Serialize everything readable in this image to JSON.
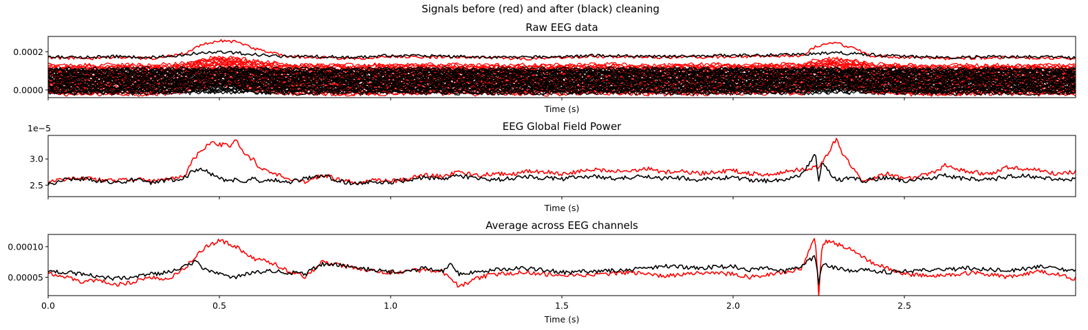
{
  "figure": {
    "suptitle": "Signals before (red) and after (black) cleaning"
  },
  "colors": {
    "before": "#ff0000",
    "after": "#000000"
  },
  "chart_data": [
    {
      "type": "line",
      "title": "Raw EEG data",
      "xlabel": "Time (s)",
      "ylabel": "",
      "xlim": [
        0,
        3.0
      ],
      "ylim": [
        -4e-05,
        0.00028
      ],
      "yticks": [
        0.0,
        0.0002
      ],
      "ytick_labels": [
        "0.0000",
        "0.0002"
      ],
      "xtick_labels_visible": false,
      "grid": false,
      "n_channels_per_series": 32,
      "series": [
        {
          "name": "before",
          "color": "#ff0000",
          "x": [
            0.0,
            0.1,
            0.2,
            0.3,
            0.4,
            0.45,
            0.5,
            0.55,
            0.6,
            0.7,
            0.8,
            0.9,
            1.0,
            1.2,
            1.4,
            1.6,
            1.8,
            2.0,
            2.2,
            2.24,
            2.3,
            2.35,
            2.4,
            2.5,
            2.6,
            2.8,
            3.0
          ],
          "top_channel": [
            0.00017,
            0.000165,
            0.00017,
            0.000165,
            0.00019,
            0.000235,
            0.00026,
            0.00025,
            0.000215,
            0.000175,
            0.00017,
            0.000165,
            0.000175,
            0.00017,
            0.000165,
            0.000175,
            0.00017,
            0.000175,
            0.00018,
            0.000225,
            0.000245,
            0.00022,
            0.00018,
            0.00017,
            0.000165,
            0.00017,
            0.000165
          ],
          "band_range": [
            -2e-05,
            0.00013
          ]
        },
        {
          "name": "after",
          "color": "#000000",
          "x": [
            0.0,
            0.1,
            0.2,
            0.3,
            0.4,
            0.45,
            0.5,
            0.55,
            0.6,
            0.7,
            0.8,
            0.9,
            1.0,
            1.2,
            1.4,
            1.6,
            1.8,
            2.0,
            2.2,
            2.24,
            2.3,
            2.35,
            2.4,
            2.5,
            2.6,
            2.8,
            3.0
          ],
          "top_channel": [
            0.000175,
            0.00017,
            0.000175,
            0.00017,
            0.000185,
            0.000195,
            0.0002,
            0.000195,
            0.000185,
            0.000175,
            0.000175,
            0.00017,
            0.00018,
            0.000175,
            0.00017,
            0.00018,
            0.000175,
            0.00018,
            0.000185,
            0.00019,
            0.000195,
            0.00019,
            0.000185,
            0.000175,
            0.00017,
            0.000175,
            0.00017
          ],
          "band_range": [
            -1.5e-05,
            0.00011
          ]
        }
      ]
    },
    {
      "type": "line",
      "title": "EEG Global Field Power",
      "xlabel": "Time (s)",
      "ylabel": "",
      "offset_text": "1e−5",
      "xlim": [
        0,
        3.0
      ],
      "ylim": [
        2.28,
        3.45
      ],
      "yticks": [
        2.5,
        3.0
      ],
      "ytick_labels": [
        "2.5",
        "3.0"
      ],
      "xtick_labels_visible": false,
      "grid": false,
      "series": [
        {
          "name": "before",
          "color": "#ff0000",
          "x": [
            0.0,
            0.05,
            0.1,
            0.15,
            0.2,
            0.25,
            0.3,
            0.35,
            0.4,
            0.42,
            0.45,
            0.48,
            0.5,
            0.53,
            0.55,
            0.58,
            0.6,
            0.62,
            0.65,
            0.7,
            0.75,
            0.8,
            0.85,
            0.9,
            0.95,
            1.0,
            1.05,
            1.1,
            1.15,
            1.2,
            1.25,
            1.3,
            1.35,
            1.4,
            1.45,
            1.5,
            1.55,
            1.6,
            1.65,
            1.7,
            1.75,
            1.8,
            1.85,
            1.9,
            1.95,
            2.0,
            2.05,
            2.1,
            2.15,
            2.2,
            2.25,
            2.28,
            2.3,
            2.32,
            2.35,
            2.38,
            2.4,
            2.45,
            2.5,
            2.55,
            2.6,
            2.62,
            2.65,
            2.7,
            2.75,
            2.8,
            2.85,
            2.9,
            2.95,
            3.0
          ],
          "values": [
            2.55,
            2.62,
            2.65,
            2.6,
            2.58,
            2.62,
            2.57,
            2.6,
            2.68,
            2.95,
            3.2,
            3.3,
            3.28,
            3.25,
            3.35,
            3.05,
            2.98,
            2.8,
            2.75,
            2.62,
            2.55,
            2.7,
            2.6,
            2.55,
            2.6,
            2.57,
            2.62,
            2.7,
            2.66,
            2.75,
            2.68,
            2.72,
            2.7,
            2.78,
            2.75,
            2.72,
            2.76,
            2.8,
            2.75,
            2.78,
            2.82,
            2.74,
            2.76,
            2.72,
            2.75,
            2.78,
            2.72,
            2.7,
            2.76,
            2.8,
            2.85,
            3.15,
            3.38,
            3.1,
            2.82,
            2.55,
            2.6,
            2.72,
            2.62,
            2.68,
            2.78,
            2.9,
            2.8,
            2.75,
            2.7,
            2.85,
            2.8,
            2.78,
            2.7,
            2.76
          ]
        },
        {
          "name": "after",
          "color": "#000000",
          "x": [
            0.0,
            0.05,
            0.1,
            0.15,
            0.2,
            0.25,
            0.3,
            0.35,
            0.4,
            0.42,
            0.45,
            0.48,
            0.5,
            0.53,
            0.55,
            0.58,
            0.6,
            0.62,
            0.65,
            0.7,
            0.75,
            0.8,
            0.85,
            0.9,
            0.95,
            1.0,
            1.05,
            1.1,
            1.15,
            1.2,
            1.25,
            1.3,
            1.35,
            1.4,
            1.45,
            1.5,
            1.55,
            1.6,
            1.65,
            1.7,
            1.75,
            1.8,
            1.85,
            1.9,
            1.95,
            2.0,
            2.05,
            2.1,
            2.15,
            2.2,
            2.24,
            2.25,
            2.26,
            2.28,
            2.3,
            2.32,
            2.35,
            2.38,
            2.4,
            2.45,
            2.5,
            2.55,
            2.6,
            2.62,
            2.65,
            2.7,
            2.75,
            2.8,
            2.85,
            2.9,
            2.95,
            3.0
          ],
          "values": [
            2.52,
            2.6,
            2.62,
            2.58,
            2.55,
            2.6,
            2.55,
            2.58,
            2.65,
            2.75,
            2.82,
            2.7,
            2.62,
            2.58,
            2.6,
            2.58,
            2.62,
            2.58,
            2.6,
            2.55,
            2.62,
            2.68,
            2.58,
            2.52,
            2.58,
            2.55,
            2.6,
            2.65,
            2.62,
            2.68,
            2.62,
            2.6,
            2.63,
            2.66,
            2.64,
            2.62,
            2.65,
            2.67,
            2.63,
            2.65,
            2.68,
            2.62,
            2.64,
            2.6,
            2.63,
            2.65,
            2.6,
            2.58,
            2.62,
            2.7,
            3.1,
            2.6,
            2.95,
            2.75,
            2.62,
            2.6,
            2.65,
            2.58,
            2.6,
            2.65,
            2.58,
            2.62,
            2.66,
            2.7,
            2.64,
            2.62,
            2.6,
            2.66,
            2.68,
            2.64,
            2.6,
            2.62
          ]
        }
      ]
    },
    {
      "type": "line",
      "title": "Average across EEG channels",
      "xlabel": "Time (s)",
      "ylabel": "",
      "xlim": [
        0,
        3.0
      ],
      "ylim": [
        2e-05,
        0.00012
      ],
      "yticks": [
        5e-05,
        0.0001
      ],
      "ytick_labels": [
        "0.00005",
        "0.00010"
      ],
      "xticks": [
        0.0,
        0.5,
        1.0,
        1.5,
        2.0,
        2.5
      ],
      "xtick_labels": [
        "0.0",
        "0.5",
        "1.0",
        "1.5",
        "2.0",
        "2.5"
      ],
      "grid": false,
      "series": [
        {
          "name": "before",
          "color": "#ff0000",
          "x": [
            0.0,
            0.05,
            0.1,
            0.15,
            0.2,
            0.25,
            0.3,
            0.35,
            0.4,
            0.43,
            0.46,
            0.5,
            0.55,
            0.6,
            0.65,
            0.7,
            0.75,
            0.8,
            0.85,
            0.9,
            0.95,
            1.0,
            1.05,
            1.1,
            1.15,
            1.18,
            1.2,
            1.25,
            1.3,
            1.4,
            1.5,
            1.6,
            1.7,
            1.8,
            1.9,
            2.0,
            2.05,
            2.1,
            2.15,
            2.2,
            2.24,
            2.25,
            2.26,
            2.28,
            2.3,
            2.35,
            2.4,
            2.45,
            2.5,
            2.6,
            2.7,
            2.8,
            2.9,
            3.0
          ],
          "values": [
            5.8e-05,
            5e-05,
            4.2e-05,
            4.5e-05,
            3.8e-05,
            4.2e-05,
            5e-05,
            4.8e-05,
            6.5e-05,
            8.5e-05,
            0.0001,
            0.00011,
            0.0001,
            8e-05,
            7.5e-05,
            6e-05,
            5e-05,
            7.5e-05,
            7e-05,
            6.5e-05,
            6e-05,
            5.8e-05,
            6e-05,
            6.2e-05,
            6e-05,
            4.5e-05,
            3.5e-05,
            4.8e-05,
            5.5e-05,
            5.8e-05,
            5.2e-05,
            5.5e-05,
            5.8e-05,
            5.2e-05,
            5.8e-05,
            5.5e-05,
            5e-05,
            5.5e-05,
            5.8e-05,
            6.5e-05,
            0.000115,
            2e-05,
            0.000105,
            0.00011,
            0.000105,
            9.5e-05,
            7.5e-05,
            6.5e-05,
            5.5e-05,
            5.2e-05,
            5.8e-05,
            5e-05,
            6e-05,
            4.8e-05
          ]
        },
        {
          "name": "after",
          "color": "#000000",
          "x": [
            0.0,
            0.05,
            0.1,
            0.15,
            0.2,
            0.25,
            0.3,
            0.35,
            0.4,
            0.43,
            0.46,
            0.5,
            0.55,
            0.6,
            0.65,
            0.7,
            0.75,
            0.8,
            0.85,
            0.9,
            0.95,
            1.0,
            1.05,
            1.1,
            1.15,
            1.18,
            1.2,
            1.25,
            1.3,
            1.4,
            1.5,
            1.6,
            1.7,
            1.8,
            1.9,
            2.0,
            2.05,
            2.1,
            2.15,
            2.2,
            2.24,
            2.25,
            2.26,
            2.28,
            2.3,
            2.35,
            2.4,
            2.45,
            2.5,
            2.6,
            2.7,
            2.8,
            2.9,
            3.0
          ],
          "values": [
            6e-05,
            5.8e-05,
            5.5e-05,
            5e-05,
            4.8e-05,
            5e-05,
            5.5e-05,
            5.8e-05,
            7e-05,
            7.5e-05,
            6.2e-05,
            5.5e-05,
            5e-05,
            5.8e-05,
            6e-05,
            5.8e-05,
            5.5e-05,
            7.2e-05,
            7e-05,
            6.5e-05,
            6.2e-05,
            5.8e-05,
            6e-05,
            6.5e-05,
            6e-05,
            7.2e-05,
            5.5e-05,
            5.8e-05,
            6.2e-05,
            6.5e-05,
            5.8e-05,
            6e-05,
            6.2e-05,
            6.8e-05,
            6.5e-05,
            6.8e-05,
            6.2e-05,
            6.5e-05,
            6e-05,
            6.8e-05,
            8.5e-05,
            4e-05,
            7e-05,
            6.8e-05,
            6.5e-05,
            6e-05,
            6.2e-05,
            5.8e-05,
            6e-05,
            6.2e-05,
            6.5e-05,
            6e-05,
            6.8e-05,
            6e-05
          ]
        }
      ]
    }
  ]
}
